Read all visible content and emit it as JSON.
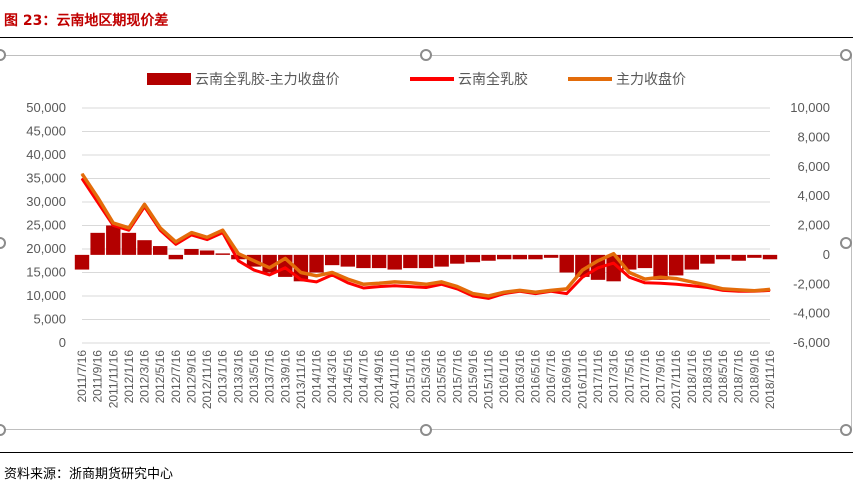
{
  "figure_title": "图 23：云南地区期现价差",
  "source": "资料来源：浙商期货研究中心",
  "colors": {
    "spread": "#b30000",
    "spot": "#ff0000",
    "futures": "#e36c0a",
    "title": "#c00000"
  },
  "chart_data": {
    "type": "line",
    "title": "",
    "legend_position": "top",
    "grid": true,
    "ylim_left": [
      0,
      50000
    ],
    "ylim_right": [
      -6000,
      10000
    ],
    "yticks_left": [
      "50,000",
      "45,000",
      "40,000",
      "35,000",
      "30,000",
      "25,000",
      "20,000",
      "15,000",
      "10,000",
      "5,000",
      "0"
    ],
    "yticks_right": [
      "10,000",
      "8,000",
      "6,000",
      "4,000",
      "2,000",
      "0",
      "-2,000",
      "-4,000",
      "-6,000"
    ],
    "x_tick_labels": [
      "2011/7/16",
      "2011/9/16",
      "2011/11/16",
      "2012/1/16",
      "2012/3/16",
      "2012/5/16",
      "2012/7/16",
      "2012/9/16",
      "2012/11/16",
      "2013/1/16",
      "2013/3/16",
      "2013/5/16",
      "2013/7/16",
      "2013/9/16",
      "2013/11/16",
      "2014/1/16",
      "2014/3/16",
      "2014/5/16",
      "2014/7/16",
      "2014/9/16",
      "2014/11/16",
      "2015/1/16",
      "2015/3/16",
      "2015/5/16",
      "2015/7/16",
      "2015/9/16",
      "2015/11/16",
      "2016/1/16",
      "2016/3/16",
      "2016/5/16",
      "2016/7/16",
      "2016/9/16",
      "2016/11/16",
      "2017/1/16",
      "2017/3/16",
      "2017/5/16",
      "2017/7/16",
      "2017/9/16",
      "2017/11/16",
      "2018/1/16",
      "2018/3/16",
      "2018/5/16",
      "2018/7/16",
      "2018/9/16",
      "2018/11/16"
    ],
    "x": [
      "2011/7/16",
      "2011/9/16",
      "2011/11/16",
      "2012/1/16",
      "2012/3/16",
      "2012/5/16",
      "2012/7/16",
      "2012/9/16",
      "2012/11/16",
      "2013/1/16",
      "2013/3/16",
      "2013/5/16",
      "2013/7/16",
      "2013/9/16",
      "2013/11/16",
      "2014/1/16",
      "2014/3/16",
      "2014/5/16",
      "2014/7/16",
      "2014/9/16",
      "2014/11/16",
      "2015/1/16",
      "2015/3/16",
      "2015/5/16",
      "2015/7/16",
      "2015/9/16",
      "2015/11/16",
      "2016/1/16",
      "2016/3/16",
      "2016/5/16",
      "2016/7/16",
      "2016/9/16",
      "2016/11/16",
      "2017/1/16",
      "2017/3/16",
      "2017/5/16",
      "2017/7/16",
      "2017/9/16",
      "2017/11/16",
      "2018/1/16",
      "2018/3/16",
      "2018/5/16",
      "2018/7/16",
      "2018/9/16",
      "2018/11/16"
    ],
    "series": [
      {
        "name": "云南全乳胶-主力收盘价",
        "axis": "right",
        "kind": "bar",
        "values": [
          -1000,
          1500,
          2000,
          1500,
          1000,
          600,
          -300,
          400,
          300,
          100,
          -300,
          -800,
          -1200,
          -1500,
          -1800,
          -1200,
          -700,
          -800,
          -900,
          -900,
          -1000,
          -900,
          -900,
          -800,
          -600,
          -500,
          -400,
          -300,
          -300,
          -300,
          -200,
          -1200,
          -1500,
          -1700,
          -1800,
          -1000,
          -900,
          -1700,
          -1400,
          -1000,
          -600,
          -300,
          -400,
          -200,
          -300
        ]
      },
      {
        "name": "云南全乳胶",
        "axis": "left",
        "kind": "line",
        "values": [
          35000,
          30000,
          25000,
          24000,
          29000,
          24000,
          21000,
          23000,
          22000,
          23500,
          17500,
          15500,
          14500,
          16000,
          13500,
          13000,
          14500,
          12800,
          11700,
          12000,
          12200,
          12000,
          11800,
          12500,
          11500,
          10000,
          9500,
          10500,
          11000,
          10500,
          11000,
          10500,
          14000,
          16000,
          17000,
          14000,
          12800,
          12700,
          12500,
          12200,
          11800,
          11200,
          11000,
          11000,
          11200
        ]
      },
      {
        "name": "主力收盘价",
        "axis": "left",
        "kind": "line",
        "values": [
          36000,
          31000,
          25500,
          24500,
          29500,
          24500,
          21500,
          23500,
          22500,
          24000,
          19000,
          17500,
          16000,
          18000,
          15000,
          14300,
          15000,
          13600,
          12500,
          12700,
          13000,
          12800,
          12500,
          13000,
          12000,
          10500,
          10000,
          10800,
          11200,
          10800,
          11200,
          11500,
          15500,
          17500,
          19000,
          15000,
          13600,
          14000,
          13700,
          13000,
          12300,
          11500,
          11300,
          11100,
          11400
        ]
      }
    ]
  }
}
